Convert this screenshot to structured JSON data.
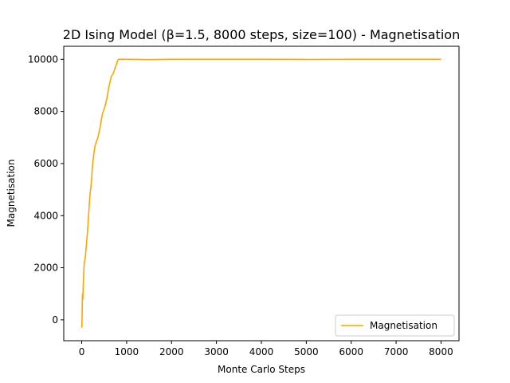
{
  "chart_data": {
    "type": "line",
    "title": "2D Ising Model (β=1.5, 8000 steps, size=100) - Magnetisation",
    "xlabel": "Monte Carlo Steps",
    "ylabel": "Magnetisation",
    "xlim": [
      -400,
      8400
    ],
    "ylim": [
      -800,
      10500
    ],
    "xticks": [
      0,
      1000,
      2000,
      3000,
      4000,
      5000,
      6000,
      7000,
      8000
    ],
    "yticks": [
      0,
      2000,
      4000,
      6000,
      8000,
      10000
    ],
    "grid": false,
    "legend_position": "lower-right",
    "series": [
      {
        "name": "Magnetisation",
        "color": "#ffa500",
        "x": [
          0,
          5,
          10,
          15,
          20,
          25,
          30,
          40,
          50,
          60,
          70,
          80,
          90,
          100,
          115,
          130,
          145,
          160,
          175,
          190,
          205,
          220,
          235,
          250,
          265,
          280,
          300,
          320,
          340,
          360,
          380,
          400,
          420,
          440,
          460,
          480,
          500,
          520,
          540,
          560,
          580,
          600,
          620,
          640,
          660,
          680,
          700,
          720,
          740,
          760,
          780,
          800,
          820,
          840,
          850,
          860,
          900,
          1000,
          1500,
          2000,
          3000,
          4000,
          5000,
          6000,
          7000,
          8000
        ],
        "y": [
          -300,
          -200,
          300,
          900,
          1000,
          800,
          1100,
          1600,
          2000,
          2200,
          2300,
          2400,
          2600,
          2800,
          3100,
          3400,
          3800,
          4200,
          4600,
          4900,
          5100,
          5400,
          5800,
          6100,
          6300,
          6500,
          6700,
          6800,
          6900,
          7000,
          7150,
          7300,
          7500,
          7700,
          7900,
          8000,
          8100,
          8200,
          8350,
          8500,
          8700,
          8900,
          9050,
          9200,
          9350,
          9400,
          9450,
          9550,
          9650,
          9750,
          9850,
          9950,
          10000,
          10000,
          10000,
          10000,
          10000,
          10000,
          9990,
          10000,
          10000,
          10000,
          9995,
          10000,
          10000,
          10000
        ]
      }
    ]
  }
}
